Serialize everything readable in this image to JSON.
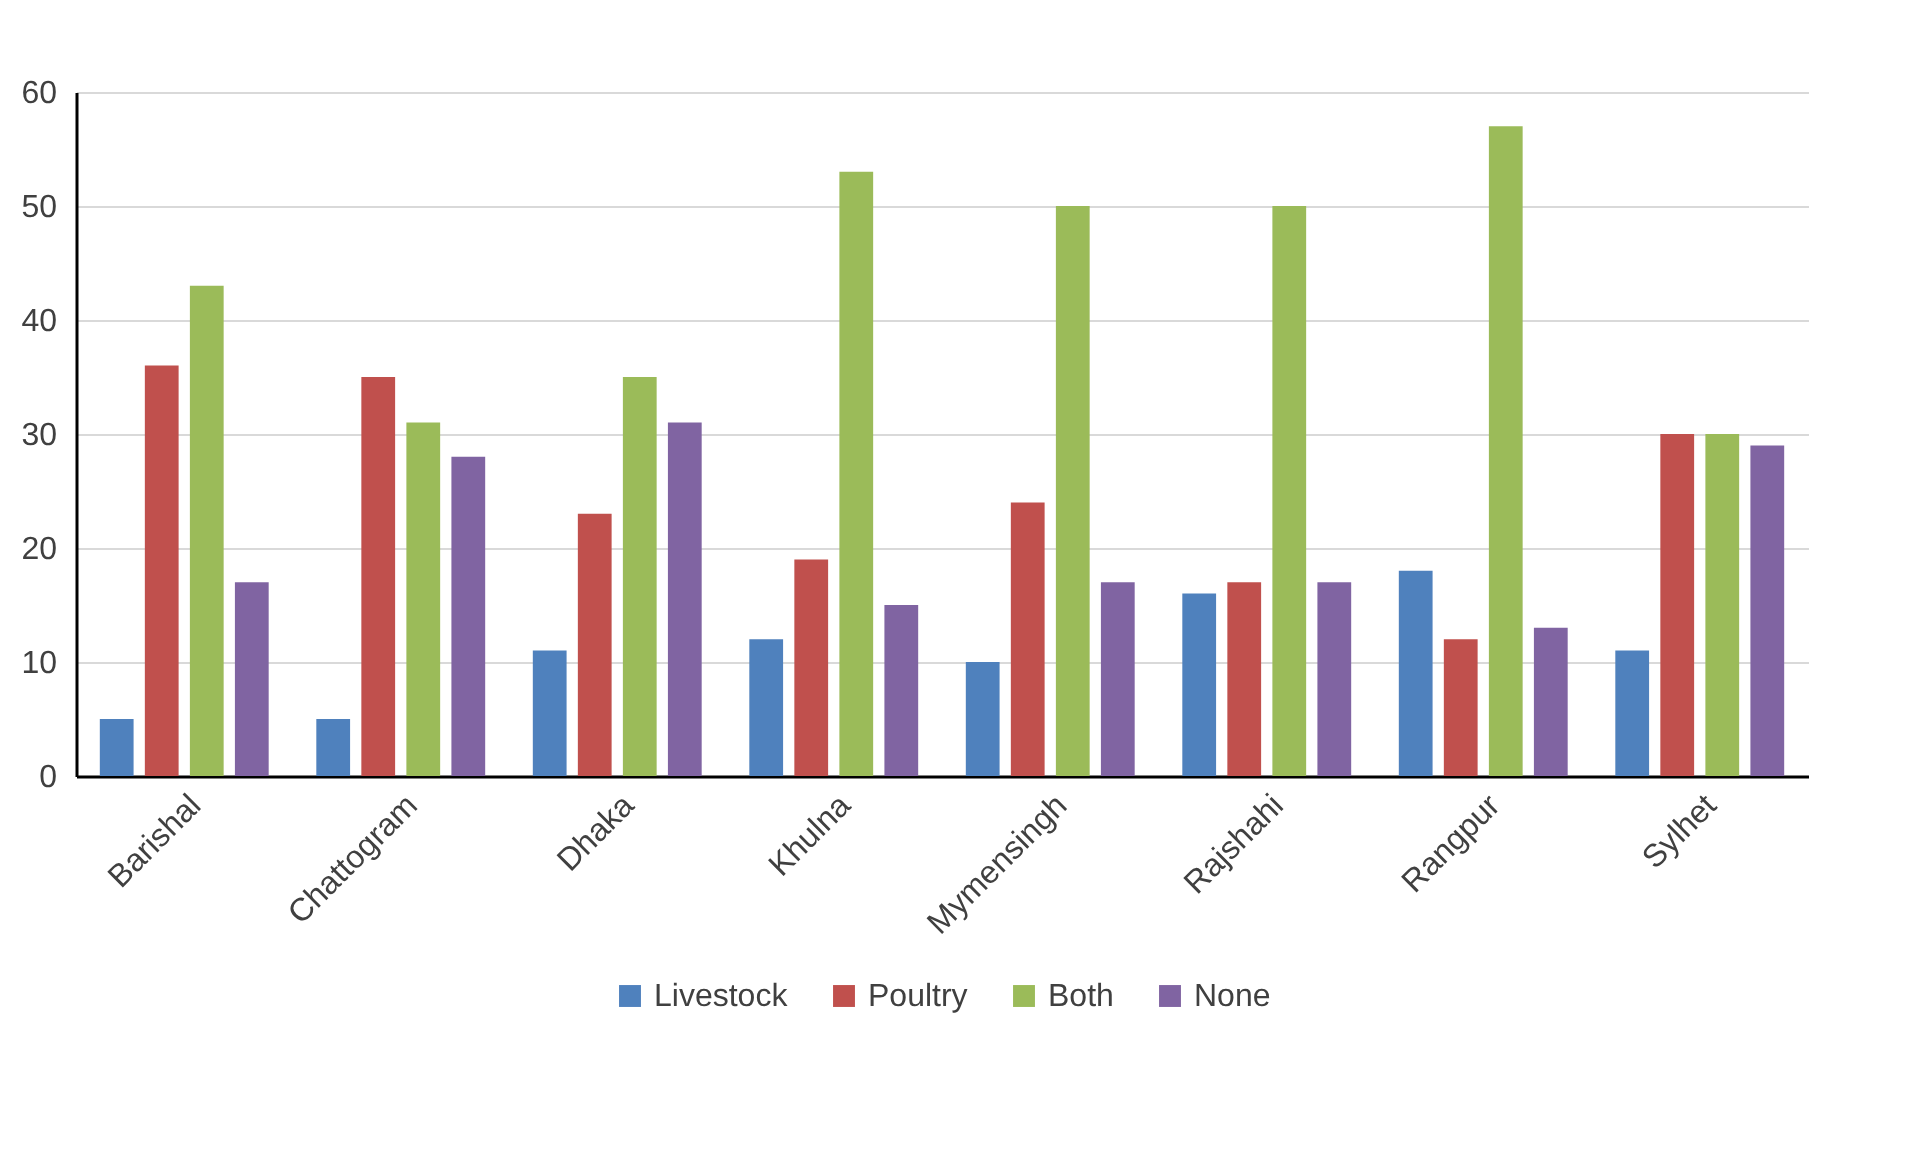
{
  "chart_data": {
    "type": "bar",
    "categories": [
      "Barishal",
      "Chattogram",
      "Dhaka",
      "Khulna",
      "Mymensingh",
      "Rajshahi",
      "Rangpur",
      "Sylhet"
    ],
    "series": [
      {
        "name": "Livestock",
        "color": "#4f81bd",
        "values": [
          5,
          5,
          11,
          12,
          10,
          16,
          18,
          11
        ]
      },
      {
        "name": "Poultry",
        "color": "#c0504d",
        "values": [
          36,
          35,
          23,
          19,
          24,
          17,
          12,
          30
        ]
      },
      {
        "name": "Both",
        "color": "#9bbb59",
        "values": [
          43,
          31,
          35,
          53,
          50,
          50,
          57,
          30
        ]
      },
      {
        "name": "None",
        "color": "#8064a2",
        "values": [
          17,
          28,
          31,
          15,
          17,
          17,
          13,
          29
        ]
      }
    ],
    "ylim": [
      0,
      60
    ],
    "yticks": [
      0,
      10,
      20,
      30,
      40,
      50,
      60
    ],
    "grid": "y",
    "legend": "bottom"
  }
}
